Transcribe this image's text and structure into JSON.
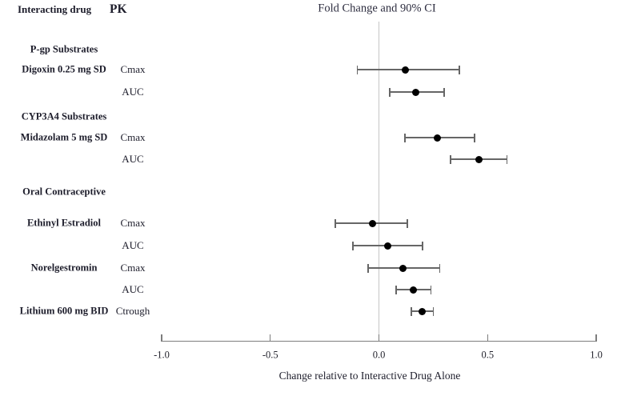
{
  "header": {
    "col_interacting_drug": "Interacting drug",
    "col_pk": "PK"
  },
  "chart_data": {
    "type": "scatter",
    "subtype": "forest-plot",
    "title": "Fold Change and 90% CI",
    "xlabel": "Change relative to Interactive Drug Alone",
    "xlim": [
      -1.0,
      1.0
    ],
    "reference_line": 0.0,
    "grid": false,
    "legend": false,
    "x_ticks": [
      {
        "value": -1.0,
        "label": "-1.0"
      },
      {
        "value": -0.5,
        "label": "-0.5"
      },
      {
        "value": 0.0,
        "label": "0.0"
      },
      {
        "value": 0.5,
        "label": "0.5"
      },
      {
        "value": 1.0,
        "label": "1.0"
      }
    ],
    "items": [
      {
        "kind": "group",
        "label": "P-gp Substrates"
      },
      {
        "kind": "row",
        "drug": "Digoxin 0.25 mg SD",
        "pk": "Cmax",
        "value": 0.12,
        "low": -0.1,
        "high": 0.37
      },
      {
        "kind": "row",
        "drug": "",
        "pk": "AUC",
        "value": 0.17,
        "low": 0.05,
        "high": 0.3
      },
      {
        "kind": "group",
        "label": "CYP3A4 Substrates"
      },
      {
        "kind": "row",
        "drug": "Midazolam 5 mg SD",
        "pk": "Cmax",
        "value": 0.27,
        "low": 0.12,
        "high": 0.44
      },
      {
        "kind": "row",
        "drug": "",
        "pk": "AUC",
        "value": 0.46,
        "low": 0.33,
        "high": 0.59
      },
      {
        "kind": "group",
        "label": "Oral Contraceptive"
      },
      {
        "kind": "row",
        "drug": "Ethinyl Estradiol",
        "pk": "Cmax",
        "value": -0.03,
        "low": -0.2,
        "high": 0.13
      },
      {
        "kind": "row",
        "drug": "",
        "pk": "AUC",
        "value": 0.04,
        "low": -0.12,
        "high": 0.2
      },
      {
        "kind": "row",
        "drug": "Norelgestromin",
        "pk": "Cmax",
        "value": 0.11,
        "low": -0.05,
        "high": 0.28
      },
      {
        "kind": "row",
        "drug": "",
        "pk": "AUC",
        "value": 0.16,
        "low": 0.08,
        "high": 0.24
      },
      {
        "kind": "row",
        "drug": "Lithium 600 mg BID",
        "pk": "Ctrough",
        "value": 0.2,
        "low": 0.15,
        "high": 0.25
      }
    ],
    "colors": {
      "marker": "#000000",
      "ci_bar": "#666666",
      "reference_line": "#c6c6c6",
      "axis": "#7d7d7d",
      "text": "#1d1d2b"
    }
  }
}
